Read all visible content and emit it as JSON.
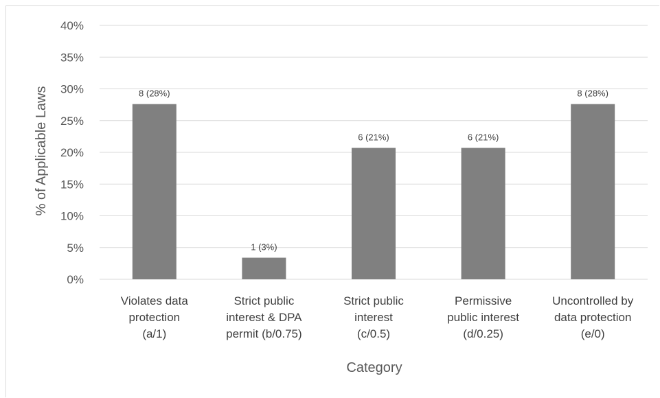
{
  "chart_data": {
    "type": "bar",
    "categories": [
      [
        "Violates data",
        "protection",
        "(a/1)"
      ],
      [
        "Strict public",
        "interest & DPA",
        "permit (b/0.75)"
      ],
      [
        "Strict public",
        "interest",
        "(c/0.5)"
      ],
      [
        "Permissive",
        "public interest",
        "(d/0.25)"
      ],
      [
        "Uncontrolled by",
        "data protection",
        "(e/0)"
      ]
    ],
    "values": [
      27.6,
      3.4,
      20.7,
      20.7,
      27.6
    ],
    "data_labels": [
      "8 (28%)",
      "1 (3%)",
      "6 (21%)",
      "6 (21%)",
      "8 (28%)"
    ],
    "xlabel": "Category",
    "ylabel": "% of Applicable Laws",
    "ylim": [
      0,
      40
    ],
    "yticks": [
      0,
      5,
      10,
      15,
      20,
      25,
      30,
      35,
      40
    ],
    "ytick_labels": [
      "0%",
      "5%",
      "10%",
      "15%",
      "20%",
      "25%",
      "30%",
      "35%",
      "40%"
    ],
    "grid": true,
    "bar_color": "#808080",
    "grid_color": "#d9d9d9"
  }
}
